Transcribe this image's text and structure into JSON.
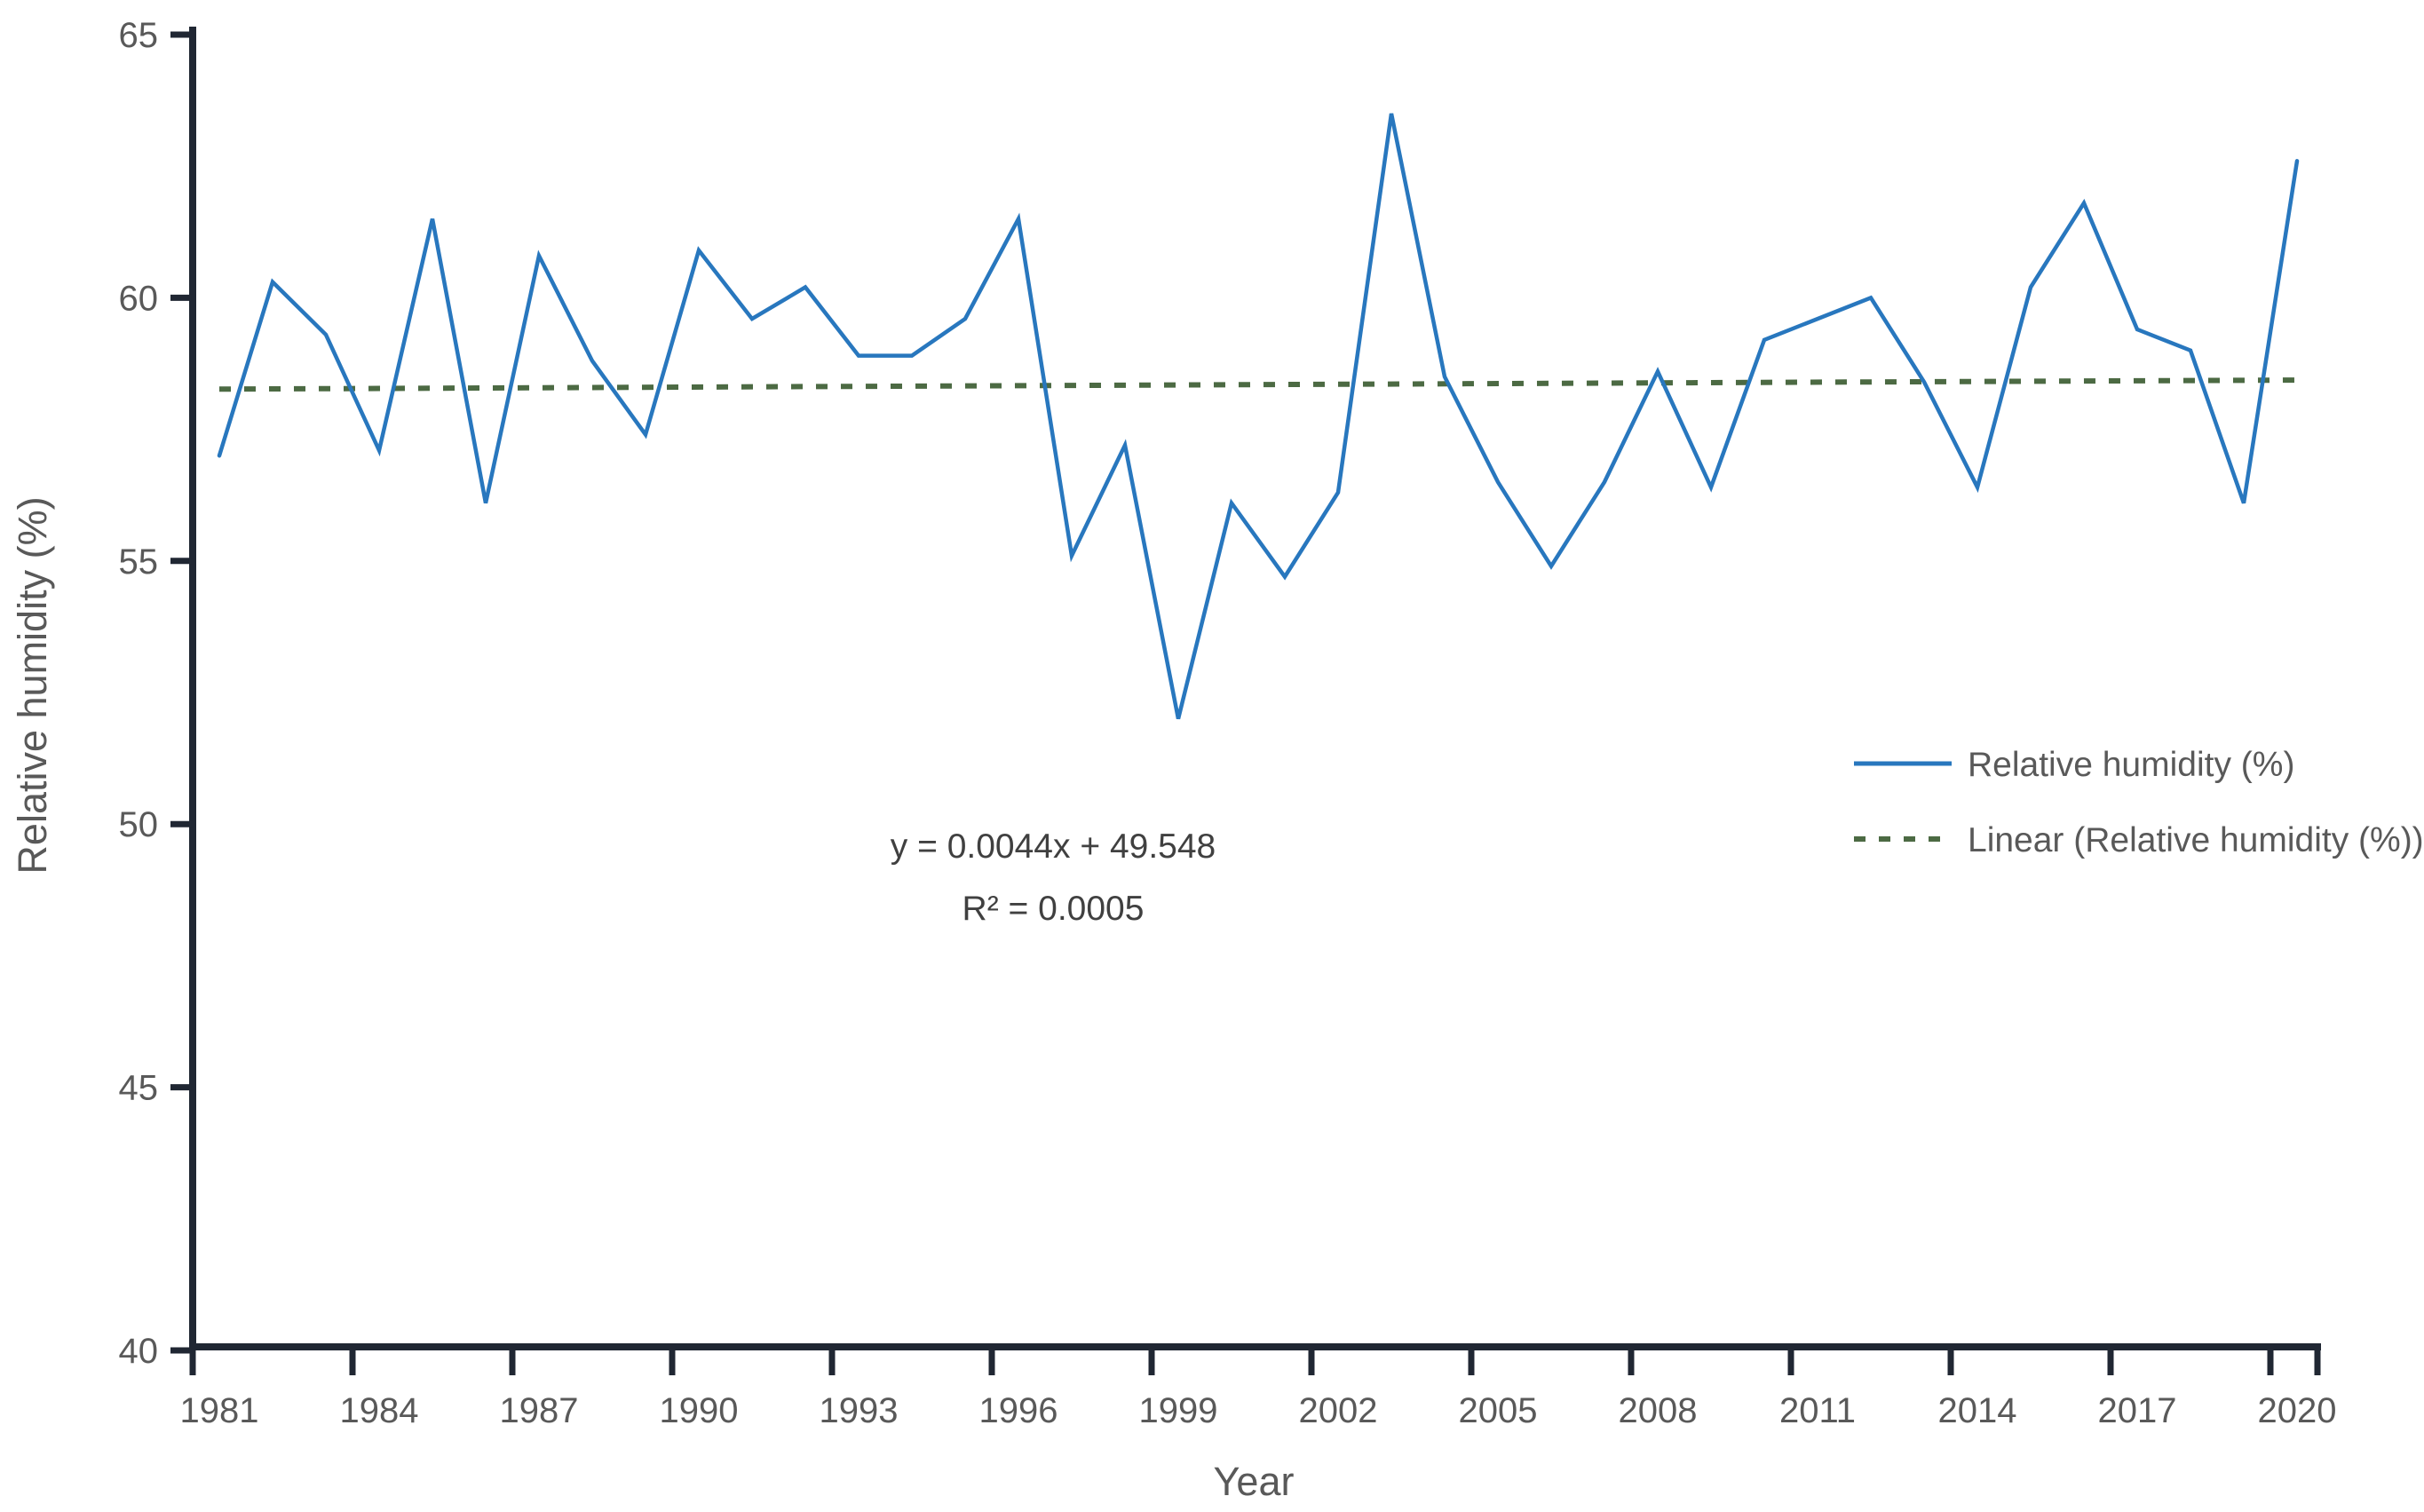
{
  "chart_data": {
    "type": "line",
    "title": "",
    "xlabel": "Year",
    "ylabel": "Relative humidity (%)",
    "x": [
      1981,
      1982,
      1983,
      1984,
      1985,
      1986,
      1987,
      1988,
      1989,
      1990,
      1991,
      1992,
      1993,
      1994,
      1995,
      1996,
      1997,
      1998,
      1999,
      2000,
      2001,
      2002,
      2003,
      2004,
      2005,
      2006,
      2007,
      2008,
      2009,
      2010,
      2011,
      2012,
      2013,
      2014,
      2015,
      2016,
      2017,
      2018,
      2019,
      2020
    ],
    "series": [
      {
        "name": "Relative humidity (%)",
        "color": "#2877BE",
        "values": [
          57.0,
          60.3,
          59.3,
          57.1,
          61.5,
          56.1,
          60.8,
          58.8,
          57.4,
          60.9,
          59.6,
          60.2,
          58.9,
          58.9,
          59.6,
          61.5,
          55.1,
          57.2,
          52.0,
          56.1,
          54.7,
          56.3,
          63.5,
          58.5,
          56.5,
          54.9,
          56.5,
          58.6,
          56.4,
          59.2,
          59.6,
          60.0,
          58.4,
          56.4,
          60.2,
          61.8,
          59.4,
          59.0,
          56.1,
          62.6
        ]
      }
    ],
    "trendline": {
      "name": "Linear (Relative humidity (%))",
      "slope": 0.0044,
      "intercept": 49.548,
      "equation": "y = 0.0044x + 49.548",
      "r_squared": "R² = 0.0005",
      "color": "#4C6A43",
      "style": "dotted"
    },
    "ylim": [
      40,
      65
    ],
    "y_ticks": [
      65,
      60,
      55,
      50,
      45,
      40
    ],
    "x_tick_labels": [
      1981,
      1984,
      1987,
      1990,
      1993,
      1996,
      1999,
      2002,
      2005,
      2008,
      2011,
      2014,
      2017,
      2020
    ],
    "x_tick_step": 3,
    "grid": false,
    "legend_position": "middle-right"
  },
  "annotation": {
    "line1": "y = 0.0044x + 49.548",
    "line2": "R² = 0.0005"
  },
  "legend": {
    "items": [
      {
        "label": "Relative humidity (%)",
        "swatch": "solid-line",
        "color": "#2877BE"
      },
      {
        "label": "Linear (Relative humidity (%))",
        "swatch": "dotted-line",
        "color": "#4C6A43"
      }
    ]
  },
  "style": {
    "axis_color": "#202733",
    "label_color": "#595959",
    "series_color": "#2877BE",
    "trendline_color": "#4C6A43",
    "background": "#ffffff"
  }
}
